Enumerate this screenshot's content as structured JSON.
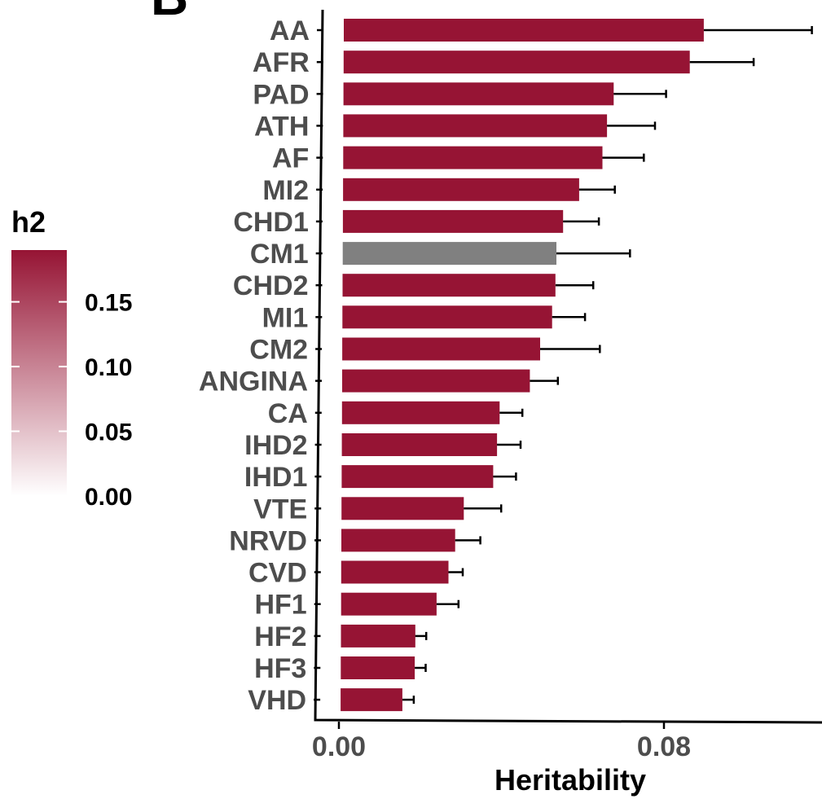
{
  "chart_data": {
    "type": "bar",
    "orientation": "horizontal",
    "panel_label": "B",
    "title": "",
    "xlabel": "Heritability",
    "ylabel": "",
    "xlim": [
      0,
      0.118
    ],
    "x_ticks": [
      {
        "value": 0.0,
        "label": "0.00"
      },
      {
        "value": 0.08,
        "label": "0.08"
      }
    ],
    "grid": false,
    "categories": [
      "AA",
      "AFR",
      "PAD",
      "ATH",
      "AF",
      "MI2",
      "CHD1",
      "CM1",
      "CHD2",
      "MI1",
      "CM2",
      "ANGINA",
      "CA",
      "IHD2",
      "IHD1",
      "VTE",
      "NRVD",
      "CVD",
      "HF1",
      "HF2",
      "HF3",
      "VHD"
    ],
    "values": [
      0.0886,
      0.0852,
      0.0665,
      0.0649,
      0.0638,
      0.0581,
      0.0542,
      0.0526,
      0.0524,
      0.0516,
      0.0487,
      0.0462,
      0.0388,
      0.0382,
      0.0373,
      0.0301,
      0.028,
      0.0264,
      0.0235,
      0.0183,
      0.0182,
      0.0152
    ],
    "err_upper": [
      0.1152,
      0.1009,
      0.0794,
      0.0767,
      0.074,
      0.0669,
      0.063,
      0.0707,
      0.0617,
      0.0597,
      0.0634,
      0.0531,
      0.0444,
      0.044,
      0.0429,
      0.0393,
      0.0342,
      0.0299,
      0.0289,
      0.021,
      0.0209,
      0.018
    ],
    "colors": {
      "bar": "#961434",
      "highlight": "#808080",
      "error": "#000000"
    },
    "highlight_category": "CM1",
    "legend": {
      "title": "h2",
      "placement": "left",
      "type": "colorbar",
      "color_low": "#ffffff",
      "color_high": "#961434",
      "range": [
        0,
        0.19
      ],
      "ticks": [
        {
          "value": 0.15,
          "label": "0.15"
        },
        {
          "value": 0.1,
          "label": "0.10"
        },
        {
          "value": 0.05,
          "label": "0.05"
        },
        {
          "value": 0.0,
          "label": "0.00"
        }
      ]
    }
  }
}
